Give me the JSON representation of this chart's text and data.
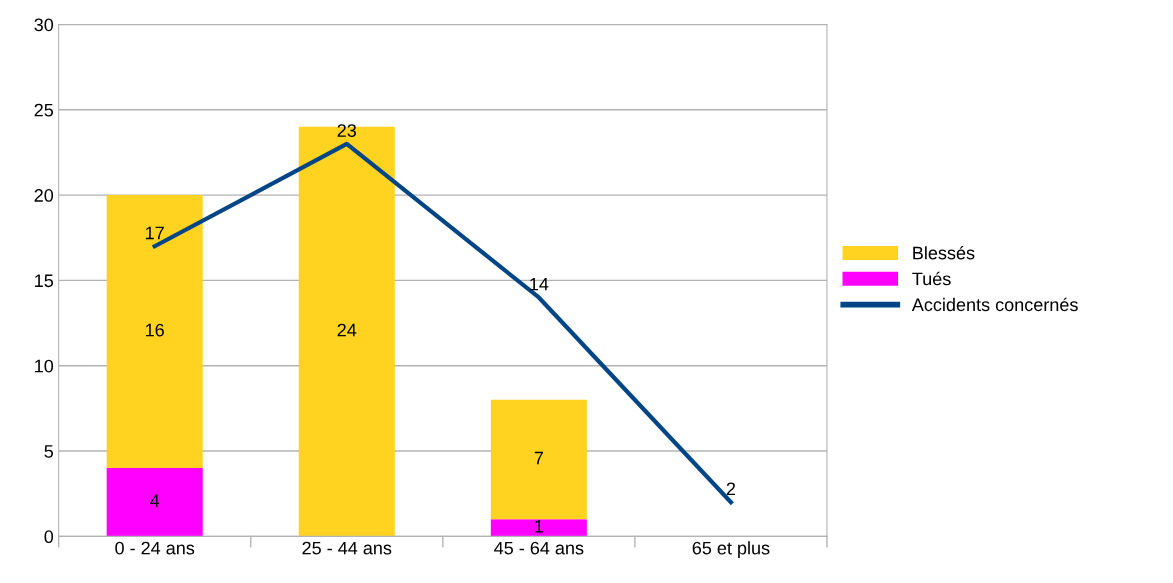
{
  "chart_data": {
    "type": "bar",
    "stacked": true,
    "categories": [
      "0 - 24 ans",
      "25 - 44 ans",
      "45 - 64 ans",
      "65 et plus"
    ],
    "series": [
      {
        "name": "Tués",
        "color": "#ff00ff",
        "values": [
          4,
          0,
          1,
          0
        ],
        "value_labels": [
          "4",
          null,
          "1",
          null
        ]
      },
      {
        "name": "Blessés",
        "color": "#ffd320",
        "values": [
          16,
          24,
          7,
          0
        ],
        "value_labels": [
          "16",
          "24",
          "7",
          null
        ]
      },
      {
        "name": "Accidents concernés",
        "type": "line",
        "color": "#004586",
        "values": [
          17,
          23,
          14,
          2
        ],
        "value_labels": [
          "17",
          "23",
          "14",
          "2"
        ]
      }
    ],
    "ylim": [
      0,
      30
    ],
    "yticks": [
      0,
      5,
      10,
      15,
      20,
      25,
      30
    ],
    "grid": "y",
    "legend": "right",
    "marker": "none",
    "line_style": "solid"
  }
}
